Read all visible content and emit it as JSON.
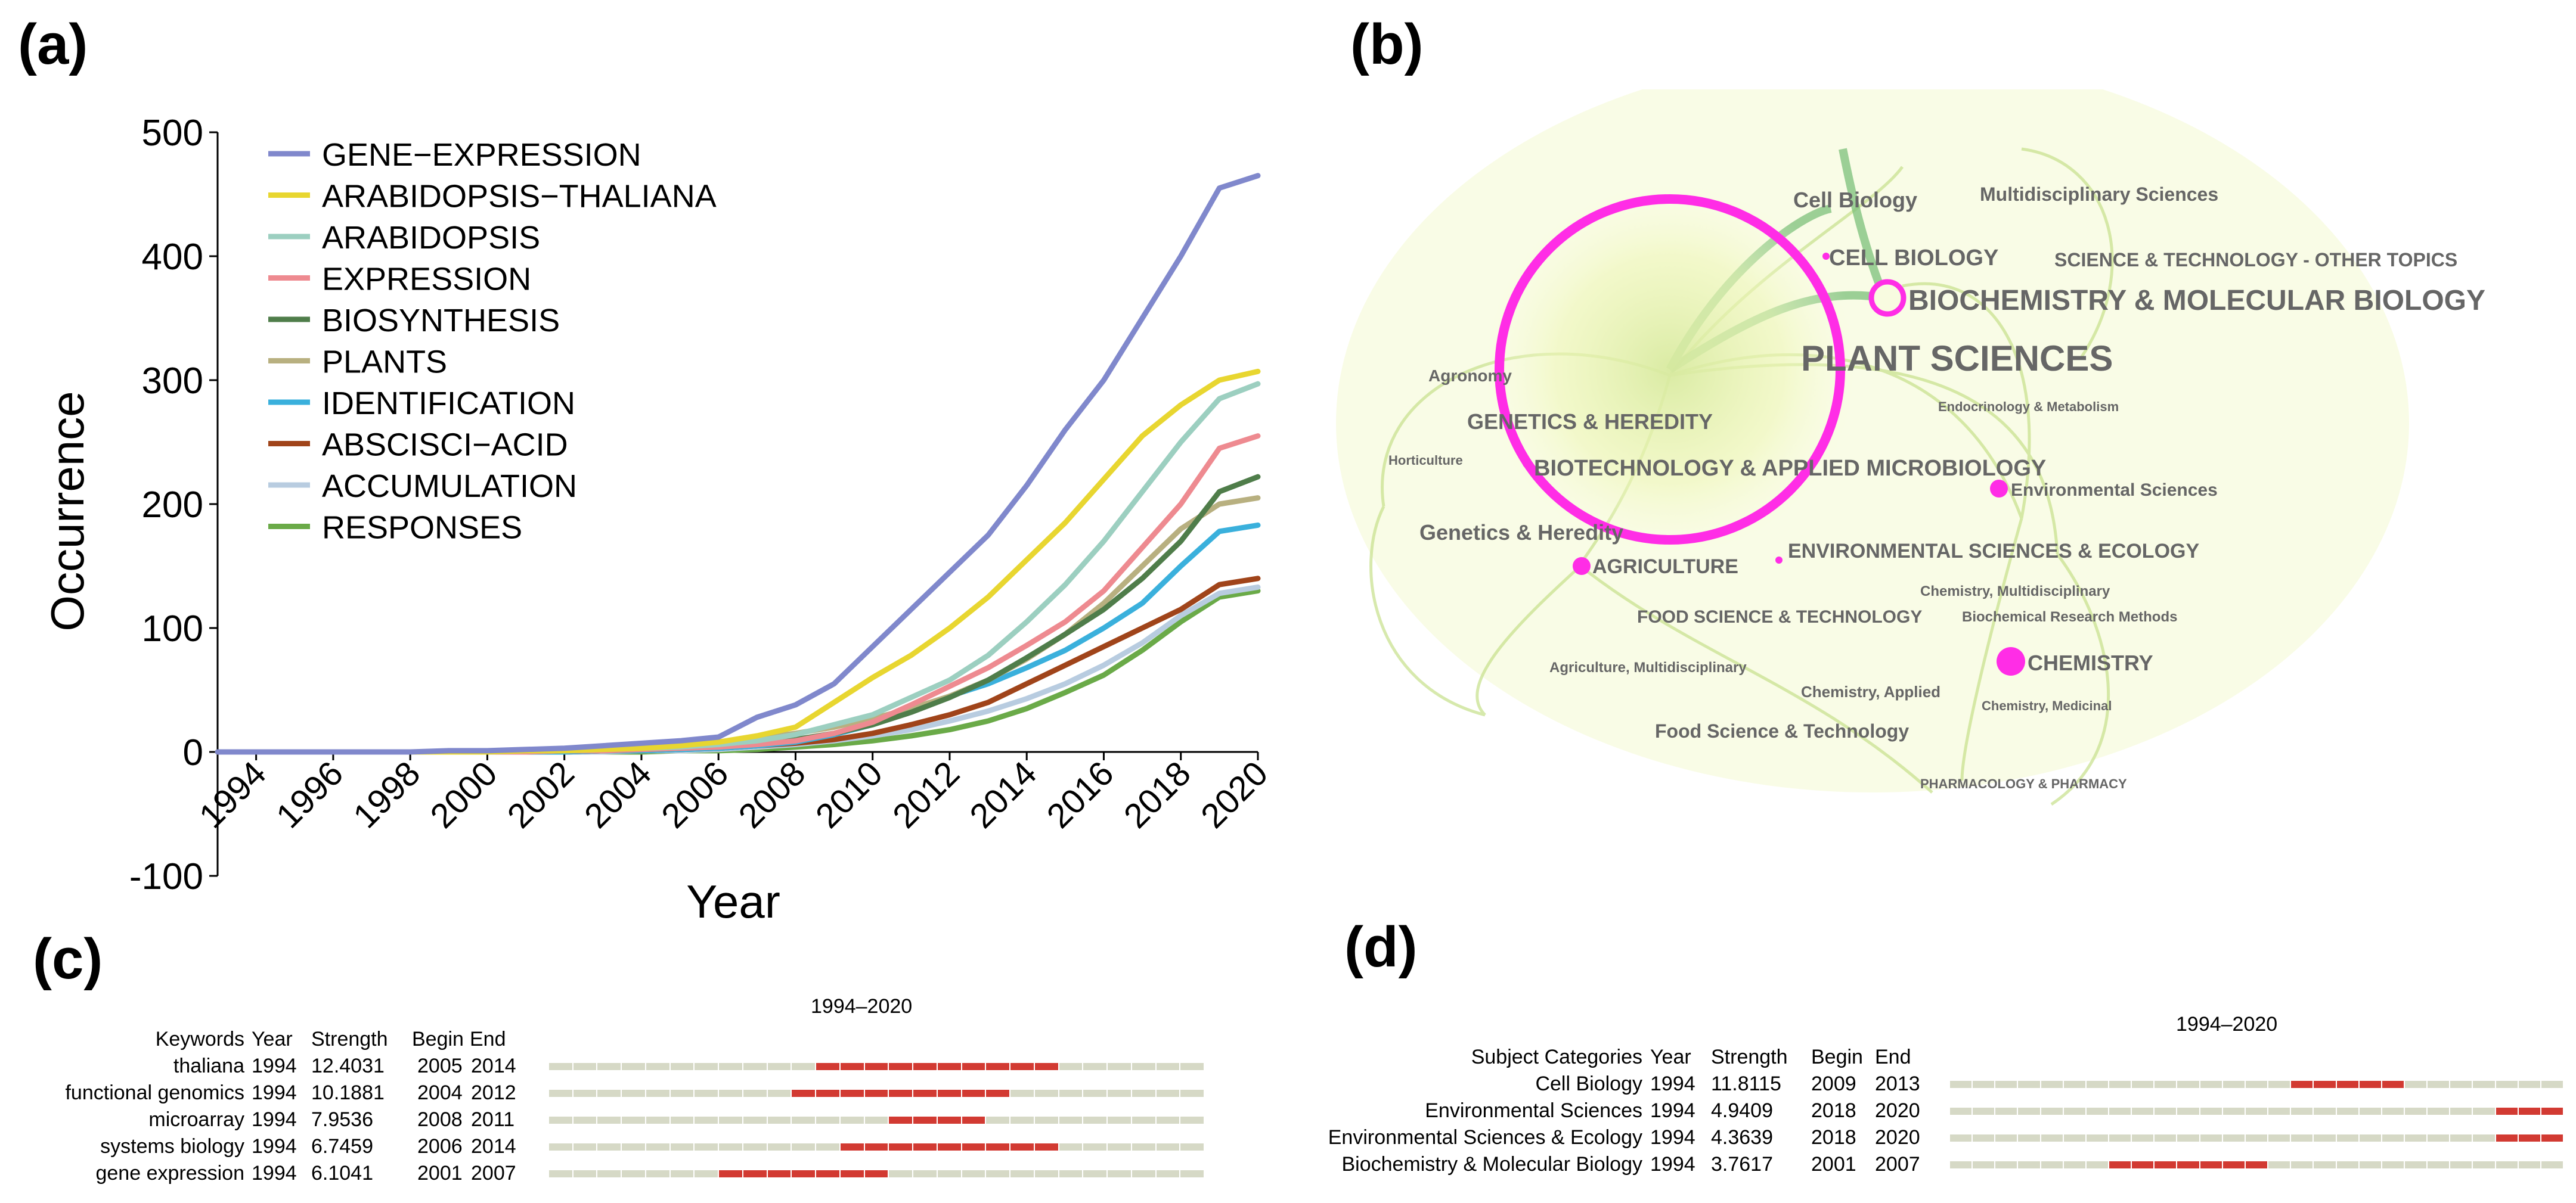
{
  "panels": {
    "a": "(a)",
    "b": "(b)",
    "c": "(c)",
    "d": "(d)"
  },
  "chart_data": [
    {
      "type": "line",
      "title": "",
      "xlabel": "Year",
      "ylabel": "Occurrence",
      "ylim": [
        -100,
        500
      ],
      "yticks": [
        -100,
        0,
        100,
        200,
        300,
        400,
        500
      ],
      "xlim": [
        1993,
        2020
      ],
      "xticks": [
        1994,
        1996,
        1998,
        2000,
        2002,
        2004,
        2006,
        2008,
        2010,
        2012,
        2014,
        2016,
        2018,
        2020
      ],
      "legend_position": "top-left",
      "x": [
        1993,
        1994,
        1995,
        1996,
        1997,
        1998,
        1999,
        2000,
        2001,
        2002,
        2003,
        2004,
        2005,
        2006,
        2007,
        2008,
        2009,
        2010,
        2011,
        2012,
        2013,
        2014,
        2015,
        2016,
        2017,
        2018,
        2019,
        2020
      ],
      "series": [
        {
          "name": "GENE−EXPRESSION",
          "color": "#8088cc",
          "values": [
            0,
            0,
            0,
            0,
            0,
            0,
            1,
            1,
            2,
            3,
            5,
            7,
            9,
            12,
            28,
            38,
            55,
            85,
            115,
            145,
            175,
            215,
            260,
            300,
            350,
            400,
            455,
            465
          ]
        },
        {
          "name": "ARABIDOPSIS−THALIANA",
          "color": "#e8d630",
          "values": [
            0,
            0,
            0,
            0,
            0,
            0,
            0,
            0,
            1,
            1,
            2,
            3,
            5,
            8,
            13,
            20,
            40,
            60,
            78,
            100,
            125,
            155,
            185,
            220,
            255,
            280,
            300,
            307
          ]
        },
        {
          "name": "ARABIDOPSIS",
          "color": "#9ccfc0",
          "values": [
            0,
            0,
            0,
            0,
            0,
            0,
            0,
            0,
            1,
            1,
            2,
            3,
            4,
            6,
            9,
            14,
            22,
            30,
            44,
            58,
            78,
            105,
            135,
            170,
            210,
            250,
            285,
            297
          ]
        },
        {
          "name": "EXPRESSION",
          "color": "#ee8a90",
          "values": [
            0,
            0,
            0,
            0,
            0,
            0,
            0,
            0,
            0,
            1,
            1,
            2,
            3,
            4,
            6,
            9,
            15,
            24,
            38,
            53,
            68,
            86,
            105,
            130,
            165,
            200,
            245,
            255
          ]
        },
        {
          "name": "BIOSYNTHESIS",
          "color": "#4f7d4a",
          "values": [
            0,
            0,
            0,
            0,
            0,
            0,
            0,
            0,
            0,
            1,
            1,
            2,
            3,
            5,
            7,
            10,
            15,
            22,
            32,
            44,
            58,
            76,
            95,
            115,
            140,
            170,
            210,
            222
          ]
        },
        {
          "name": "PLANTS",
          "color": "#b8b080",
          "values": [
            0,
            0,
            0,
            0,
            0,
            0,
            0,
            0,
            1,
            2,
            3,
            4,
            6,
            8,
            11,
            15,
            20,
            27,
            35,
            45,
            58,
            75,
            95,
            120,
            150,
            180,
            200,
            205
          ]
        },
        {
          "name": "IDENTIFICATION",
          "color": "#3ab0dc",
          "values": [
            0,
            0,
            0,
            0,
            0,
            0,
            0,
            0,
            0,
            0,
            1,
            1,
            2,
            3,
            5,
            8,
            14,
            22,
            33,
            45,
            55,
            68,
            82,
            100,
            120,
            150,
            178,
            183
          ]
        },
        {
          "name": "ABSCISCI−ACID",
          "color": "#a0441a",
          "values": [
            0,
            0,
            0,
            0,
            0,
            0,
            0,
            0,
            0,
            0,
            1,
            1,
            2,
            3,
            5,
            7,
            10,
            15,
            22,
            30,
            40,
            55,
            70,
            85,
            100,
            115,
            135,
            140
          ]
        },
        {
          "name": "ACCUMULATION",
          "color": "#b8cce0",
          "values": [
            0,
            0,
            0,
            0,
            0,
            0,
            0,
            0,
            0,
            0,
            0,
            1,
            1,
            2,
            4,
            6,
            9,
            13,
            18,
            25,
            33,
            43,
            55,
            70,
            88,
            110,
            128,
            133
          ]
        },
        {
          "name": "RESPONSES",
          "color": "#6aaa48",
          "values": [
            0,
            0,
            0,
            0,
            0,
            0,
            0,
            0,
            0,
            0,
            0,
            0,
            1,
            1,
            2,
            4,
            6,
            9,
            13,
            18,
            25,
            35,
            48,
            62,
            82,
            105,
            125,
            130
          ]
        }
      ]
    },
    {
      "type": "network",
      "nodes": [
        {
          "label": "PLANT SCIENCES",
          "size": "large",
          "ring": "magenta"
        },
        {
          "label": "BIOCHEMISTRY & MOLECULAR BIOLOGY",
          "size": "medium",
          "ring": "magenta"
        },
        {
          "label": "CHEMISTRY",
          "size": "small",
          "ring": "magenta"
        },
        {
          "label": "Environmental Sciences",
          "size": "small",
          "ring": "magenta"
        },
        {
          "label": "AGRICULTURE",
          "size": "small",
          "ring": "magenta"
        },
        {
          "label": "Cell Biology",
          "size": "tiny"
        },
        {
          "label": "Multidisciplinary Sciences",
          "size": "tiny"
        },
        {
          "label": "CELL BIOLOGY",
          "size": "tiny"
        },
        {
          "label": "SCIENCE & TECHNOLOGY - OTHER TOPICS",
          "size": "tiny"
        },
        {
          "label": "Agronomy",
          "size": "tiny"
        },
        {
          "label": "GENETICS & HEREDITY",
          "size": "tiny"
        },
        {
          "label": "Endocrinology & Metabolism",
          "size": "tiny"
        },
        {
          "label": "Horticulture",
          "size": "tiny"
        },
        {
          "label": "BIOTECHNOLOGY & APPLIED MICROBIOLOGY",
          "size": "tiny"
        },
        {
          "label": "Genetics & Heredity",
          "size": "tiny"
        },
        {
          "label": "ENVIRONMENTAL SCIENCES & ECOLOGY",
          "size": "tiny"
        },
        {
          "label": "Chemistry, Multidisciplinary",
          "size": "tiny"
        },
        {
          "label": "FOOD SCIENCE & TECHNOLOGY",
          "size": "tiny"
        },
        {
          "label": "Biochemical Research Methods",
          "size": "tiny"
        },
        {
          "label": "Agriculture, Multidisciplinary",
          "size": "tiny"
        },
        {
          "label": "Chemistry, Applied",
          "size": "tiny"
        },
        {
          "label": "Chemistry, Medicinal",
          "size": "tiny"
        },
        {
          "label": "Food Science & Technology",
          "size": "tiny"
        },
        {
          "label": "PHARMACOLOGY & PHARMACY",
          "size": "tiny"
        }
      ]
    },
    {
      "type": "table",
      "period": "1994–2020",
      "headers": [
        "Keywords",
        "Year",
        "Strength",
        "Begin",
        "End"
      ],
      "range": [
        1994,
        2020
      ],
      "rows": [
        {
          "name": "thaliana",
          "year": "1994",
          "strength": "12.4031",
          "begin": "2005",
          "end": "2014",
          "b": 2005,
          "e": 2014
        },
        {
          "name": "functional genomics",
          "year": "1994",
          "strength": "10.1881",
          "begin": "2004",
          "end": "2012",
          "b": 2004,
          "e": 2012
        },
        {
          "name": "microarray",
          "year": "1994",
          "strength": "7.9536",
          "begin": "2008",
          "end": "2011",
          "b": 2008,
          "e": 2011
        },
        {
          "name": "systems biology",
          "year": "1994",
          "strength": "6.7459",
          "begin": "2006",
          "end": "2014",
          "b": 2006,
          "e": 2014
        },
        {
          "name": "gene expression",
          "year": "1994",
          "strength": "6.1041",
          "begin": "2001",
          "end": "2007",
          "b": 2001,
          "e": 2007
        }
      ]
    },
    {
      "type": "table",
      "period": "1994–2020",
      "headers": [
        "Subject Categories",
        "Year",
        "Strength",
        "Begin",
        "End"
      ],
      "range": [
        1994,
        2020
      ],
      "rows": [
        {
          "name": "Cell Biology",
          "year": "1994",
          "strength": "11.8115",
          "begin": "2009",
          "end": "2013",
          "b": 2009,
          "e": 2013
        },
        {
          "name": "Environmental Sciences",
          "year": "1994",
          "strength": "4.9409",
          "begin": "2018",
          "end": "2020",
          "b": 2018,
          "e": 2020
        },
        {
          "name": "Environmental Sciences & Ecology",
          "year": "1994",
          "strength": "4.3639",
          "begin": "2018",
          "end": "2020",
          "b": 2018,
          "e": 2020
        },
        {
          "name": "Biochemistry & Molecular Biology",
          "year": "1994",
          "strength": "3.7617",
          "begin": "2001",
          "end": "2007",
          "b": 2001,
          "e": 2007
        }
      ]
    }
  ],
  "colors": {
    "burst": "#d23a32",
    "track": "#d6d9c6",
    "axis": "#000000",
    "node": "#ff2de6"
  }
}
